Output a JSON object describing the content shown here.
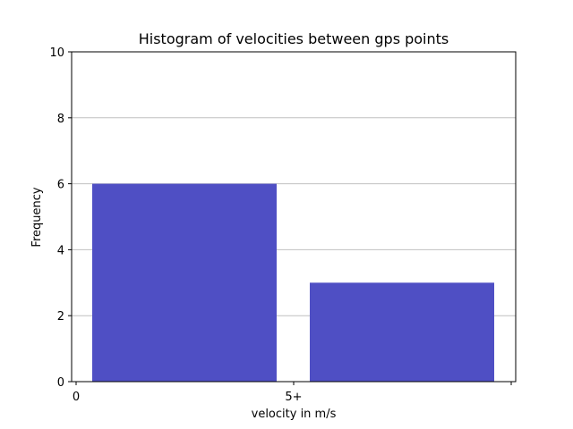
{
  "chart_data": {
    "type": "bar",
    "title": "Histogram of velocities between gps points",
    "xlabel": "velocity in m/s",
    "ylabel": "Frequency",
    "categories": [
      "0",
      "5+"
    ],
    "x_tick_labels": [
      "0",
      "5+",
      ""
    ],
    "values": [
      6,
      3
    ],
    "ylim": [
      0,
      10
    ],
    "y_ticks": [
      0,
      2,
      4,
      6,
      8,
      10
    ],
    "grid": "horizontal",
    "legend": "none",
    "bar_color": "#4f4fc4",
    "grid_color": "#c0c0c0"
  }
}
